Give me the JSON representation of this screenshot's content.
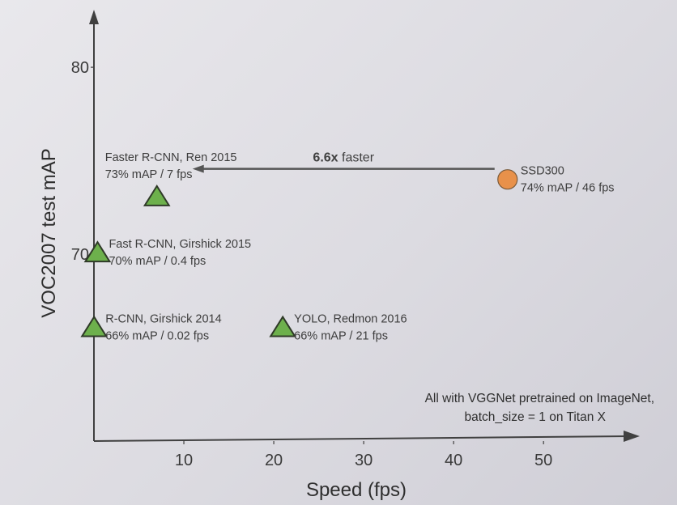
{
  "chart_data": {
    "type": "scatter",
    "xlabel": "Speed (fps)",
    "ylabel": "VOC2007 test mAP",
    "xlim": [
      0,
      58
    ],
    "ylim": [
      60,
      81
    ],
    "x_ticks": [
      10,
      20,
      30,
      40,
      50
    ],
    "y_ticks": [
      70,
      80
    ],
    "grid": false,
    "points": [
      {
        "name": "R-CNN, Girshick 2014",
        "detail": "66% mAP / 0.02 fps",
        "x": 0.02,
        "y": 66,
        "marker": "triangle",
        "color": "#6db04c"
      },
      {
        "name": "Fast R-CNN, Girshick 2015",
        "detail": "70% mAP / 0.4 fps",
        "x": 0.4,
        "y": 70,
        "marker": "triangle",
        "color": "#6db04c"
      },
      {
        "name": "Faster R-CNN, Ren 2015",
        "detail": "73% mAP / 7 fps",
        "x": 7,
        "y": 73,
        "marker": "triangle",
        "color": "#6db04c"
      },
      {
        "name": "YOLO, Redmon 2016",
        "detail": "66% mAP / 21 fps",
        "x": 21,
        "y": 66,
        "marker": "triangle",
        "color": "#6db04c"
      },
      {
        "name": "SSD300",
        "detail": "74% mAP / 46 fps",
        "x": 46,
        "y": 74,
        "marker": "circle",
        "color": "#e8914a"
      }
    ],
    "arrow": {
      "from": "SSD300",
      "to": "Faster R-CNN, Ren 2015",
      "label_bold": "6.6x",
      "label_rest": " faster"
    },
    "note": [
      "All with VGGNet pretrained on ImageNet,",
      "batch_size = 1 on Titan X"
    ]
  }
}
